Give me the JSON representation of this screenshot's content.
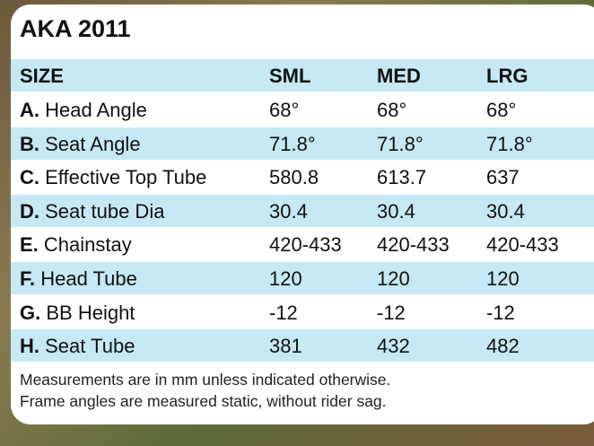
{
  "title": "AKA 2011",
  "header": [
    "SIZE",
    "SML",
    "MED",
    "LRG"
  ],
  "rows": [
    {
      "key": "A.",
      "name": "Head Angle",
      "values": [
        "68°",
        "68°",
        "68°"
      ]
    },
    {
      "key": "B.",
      "name": "Seat Angle",
      "values": [
        "71.8°",
        "71.8°",
        "71.8°"
      ]
    },
    {
      "key": "C.",
      "name": "Effective Top Tube",
      "values": [
        "580.8",
        "613.7",
        "637"
      ]
    },
    {
      "key": "D.",
      "name": "Seat tube Dia",
      "values": [
        "30.4",
        "30.4",
        "30.4"
      ]
    },
    {
      "key": "E.",
      "name": "Chainstay",
      "values": [
        "420-433",
        "420-433",
        "420-433"
      ]
    },
    {
      "key": "F.",
      "name": "Head Tube",
      "values": [
        "120",
        "120",
        "120"
      ]
    },
    {
      "key": "G.",
      "name": "BB Height",
      "values": [
        "-12",
        "-12",
        "-12"
      ]
    },
    {
      "key": "H.",
      "name": "Seat Tube",
      "values": [
        "381",
        "432",
        "482"
      ]
    }
  ],
  "notes": [
    "Measurements are in mm unless indicated otherwise.",
    "Frame angles are measured static, without rider sag."
  ]
}
